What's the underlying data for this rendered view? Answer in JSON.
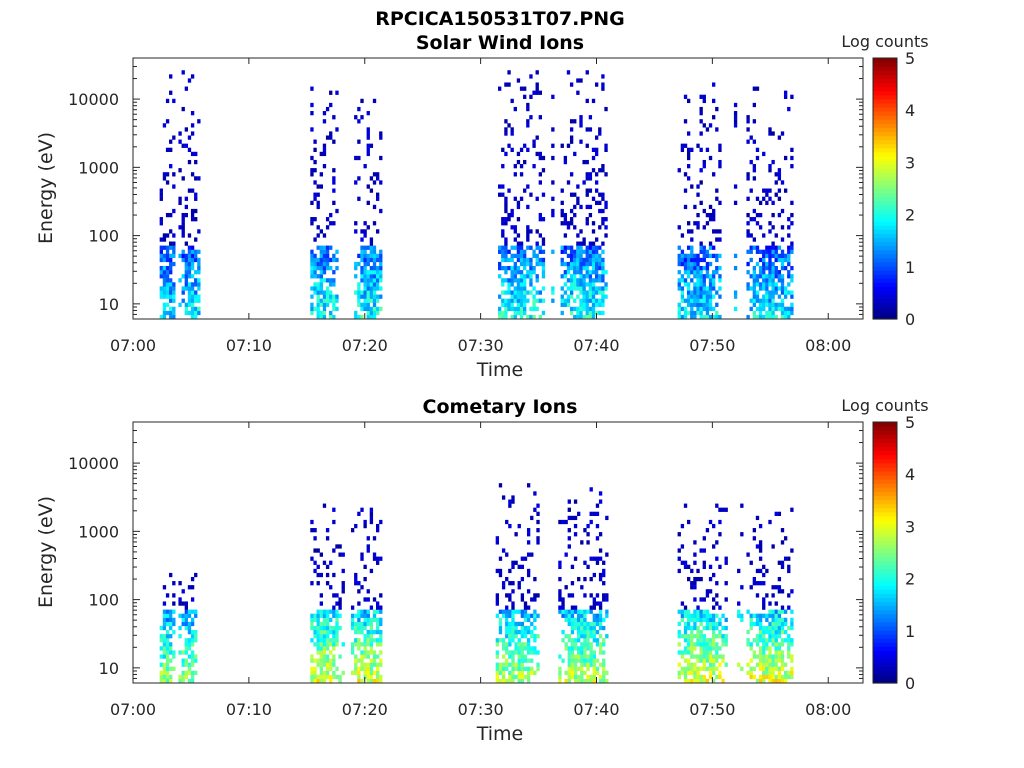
{
  "figure": {
    "title": "RPCICA150531T07.PNG"
  },
  "chart_data": [
    {
      "type": "heatmap",
      "title": "Solar Wind Ions",
      "xlabel": "Time",
      "ylabel": "Energy (eV)",
      "x_ticks": [
        "07:00",
        "07:10",
        "07:20",
        "07:30",
        "07:40",
        "07:50",
        "08:00"
      ],
      "y_ticks": [
        "10",
        "100",
        "1000",
        "10000"
      ],
      "y_scale": "log",
      "ylim": [
        6,
        40000
      ],
      "xlim": [
        "07:00",
        "08:03"
      ],
      "colorbar": {
        "label": "Log counts",
        "ticks": [
          "0",
          "1",
          "2",
          "3",
          "4",
          "5"
        ],
        "range": [
          0,
          5
        ],
        "colormap": "jet"
      },
      "bursts": [
        {
          "start_min": 2.3,
          "end_min": 5.6,
          "emax_eV": 25000,
          "low_level": 1.8
        },
        {
          "start_min": 15.3,
          "end_min": 21.5,
          "emax_eV": 15000,
          "low_level": 2.0
        },
        {
          "start_min": 31.5,
          "end_min": 40.8,
          "emax_eV": 30000,
          "low_level": 2.0
        },
        {
          "start_min": 47.0,
          "end_min": 57.0,
          "emax_eV": 17000,
          "low_level": 1.8
        }
      ]
    },
    {
      "type": "heatmap",
      "title": "Cometary Ions",
      "xlabel": "Time",
      "ylabel": "Energy (eV)",
      "x_ticks": [
        "07:00",
        "07:10",
        "07:20",
        "07:30",
        "07:40",
        "07:50",
        "08:00"
      ],
      "y_ticks": [
        "10",
        "100",
        "1000",
        "10000"
      ],
      "y_scale": "log",
      "ylim": [
        6,
        40000
      ],
      "xlim": [
        "07:00",
        "08:03"
      ],
      "colorbar": {
        "label": "Log counts",
        "ticks": [
          "0",
          "1",
          "2",
          "3",
          "4",
          "5"
        ],
        "range": [
          0,
          5
        ],
        "colormap": "jet"
      },
      "bursts": [
        {
          "start_min": 2.3,
          "end_min": 5.4,
          "emax_eV": 250,
          "low_level": 2.6
        },
        {
          "start_min": 15.3,
          "end_min": 21.5,
          "emax_eV": 2500,
          "low_level": 3.0
        },
        {
          "start_min": 31.3,
          "end_min": 40.8,
          "emax_eV": 5000,
          "low_level": 2.8
        },
        {
          "start_min": 47.0,
          "end_min": 57.0,
          "emax_eV": 2500,
          "low_level": 3.0
        }
      ]
    }
  ]
}
